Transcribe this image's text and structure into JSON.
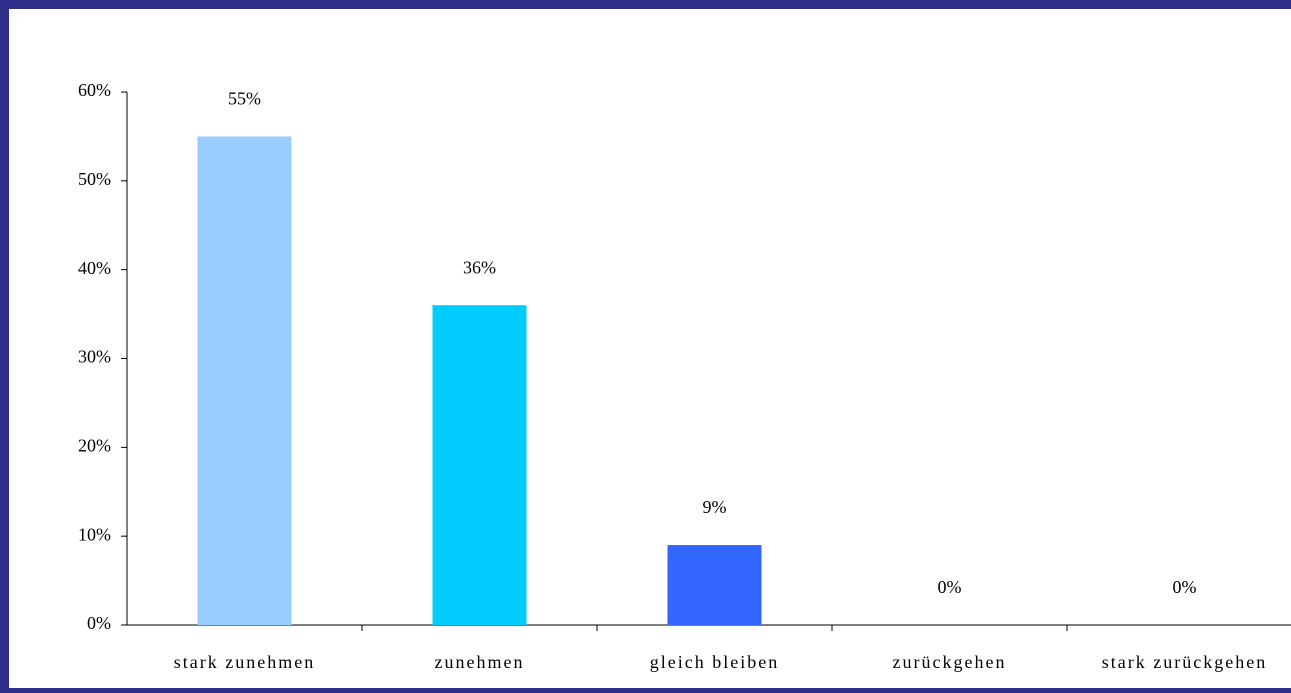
{
  "chart_data": {
    "type": "bar",
    "categories": [
      "stark zunehmen",
      "zunehmen",
      "gleich bleiben",
      "zurückgehen",
      "stark zurückgehen"
    ],
    "values": [
      55,
      36,
      9,
      0,
      0
    ],
    "value_labels": [
      "55%",
      "36%",
      "9%",
      "0%",
      "0%"
    ],
    "colors": [
      "#99ccff",
      "#00ccff",
      "#3366ff",
      "#3366ff",
      "#3366ff"
    ],
    "ylim": [
      0,
      60
    ],
    "yticks": [
      {
        "value": 0,
        "label": "0%"
      },
      {
        "value": 10,
        "label": "10%"
      },
      {
        "value": 20,
        "label": "20%"
      },
      {
        "value": 30,
        "label": "30%"
      },
      {
        "value": 40,
        "label": "40%"
      },
      {
        "value": 50,
        "label": "50%"
      },
      {
        "value": 60,
        "label": "60%"
      }
    ]
  }
}
